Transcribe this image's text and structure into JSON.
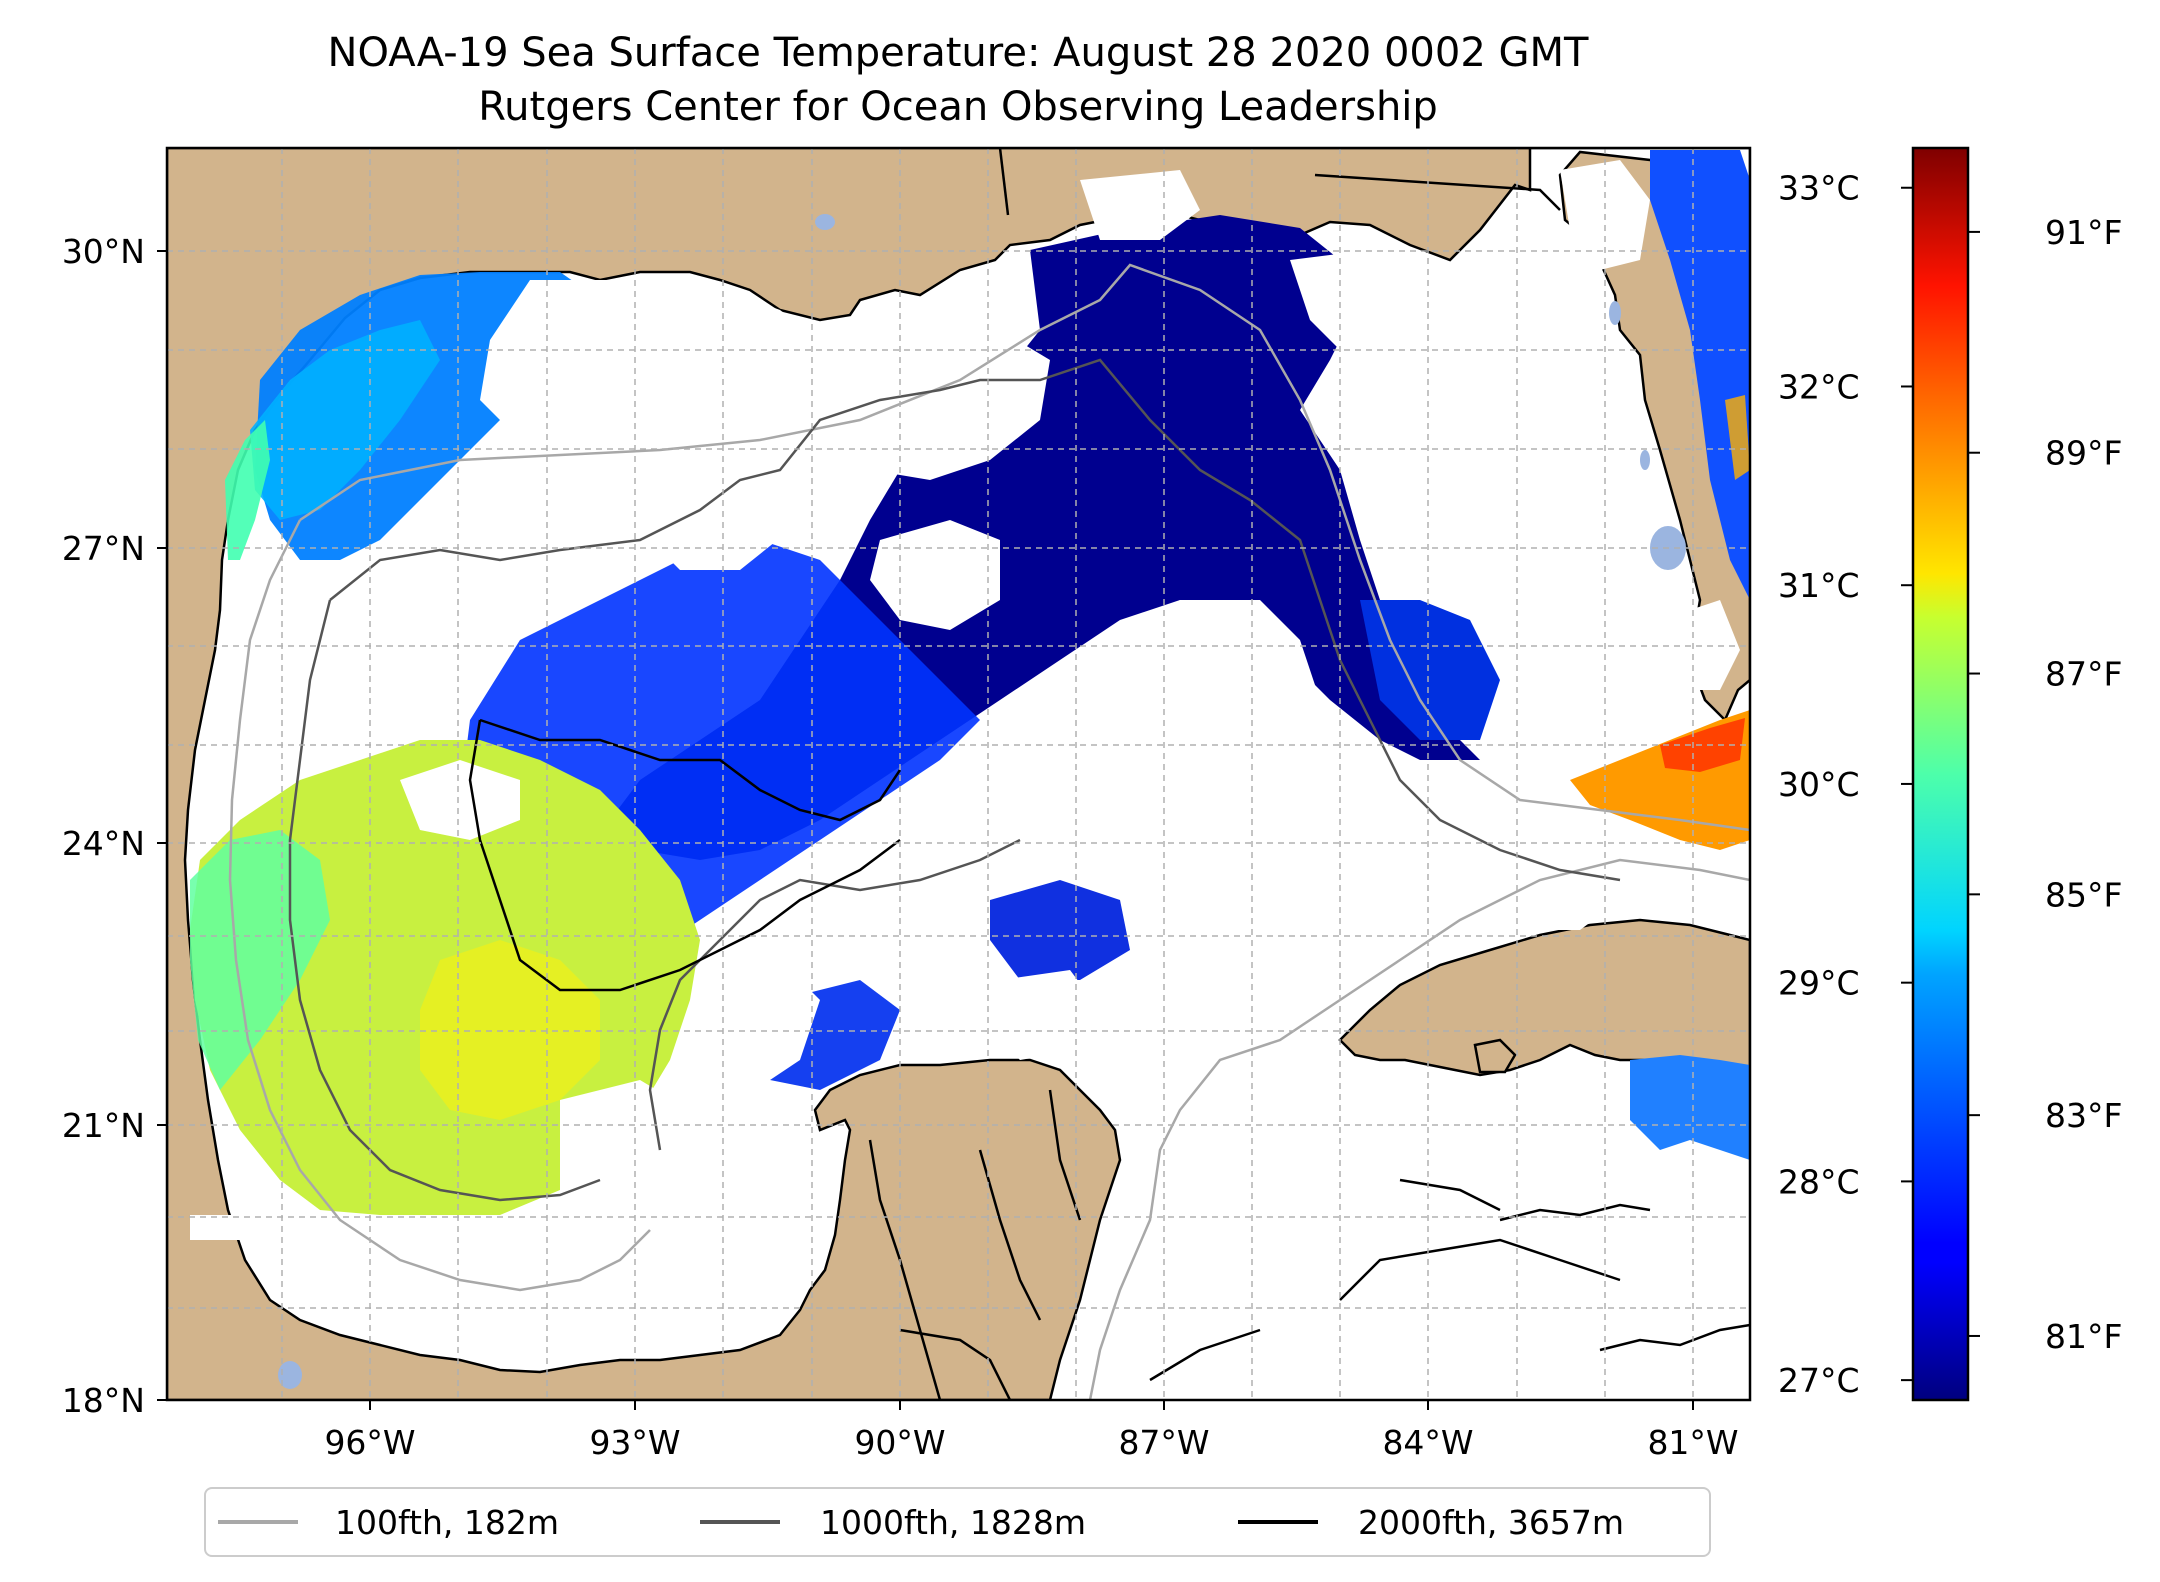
{
  "title": {
    "line1": "NOAA-19 Sea Surface Temperature: August 28 2020 0002 GMT",
    "line2": "Rutgers Center for Ocean Observing Leadership"
  },
  "map": {
    "lon_range": [
      -98,
      -80.3
    ],
    "lat_range": [
      18,
      31
    ],
    "lon_ticks": [
      {
        "value": -96,
        "label": "96°W"
      },
      {
        "value": -93,
        "label": "93°W"
      },
      {
        "value": -90,
        "label": "90°W"
      },
      {
        "value": -87,
        "label": "87°W"
      },
      {
        "value": -84,
        "label": "84°W"
      },
      {
        "value": -81,
        "label": "81°W"
      }
    ],
    "lat_ticks": [
      {
        "value": 30,
        "label": "30°N"
      },
      {
        "value": 27,
        "label": "27°N"
      },
      {
        "value": 24,
        "label": "24°N"
      },
      {
        "value": 21,
        "label": "21°N"
      },
      {
        "value": 18,
        "label": "18°N"
      }
    ],
    "gridlines": true,
    "colors": {
      "land": "#d2b48c",
      "no_data": "#ffffff",
      "lakes": "#9bb5e0",
      "coastline": "#000000"
    }
  },
  "colorbar": {
    "colormap": "jet",
    "celsius_range": [
      26.9,
      33.2
    ],
    "celsius_ticks": [
      {
        "value": 27,
        "label": "27°C"
      },
      {
        "value": 28,
        "label": "28°C"
      },
      {
        "value": 29,
        "label": "29°C"
      },
      {
        "value": 30,
        "label": "30°C"
      },
      {
        "value": 31,
        "label": "31°C"
      },
      {
        "value": 32,
        "label": "32°C"
      },
      {
        "value": 33,
        "label": "33°C"
      }
    ],
    "fahrenheit_ticks": [
      {
        "value": 81,
        "label": "81°F"
      },
      {
        "value": 83,
        "label": "83°F"
      },
      {
        "value": 85,
        "label": "85°F"
      },
      {
        "value": 87,
        "label": "87°F"
      },
      {
        "value": 89,
        "label": "89°F"
      },
      {
        "value": 91,
        "label": "91°F"
      }
    ]
  },
  "legend": {
    "items": [
      {
        "label": "100fth, 182m",
        "color": "#a8a8a8"
      },
      {
        "label": "1000fth, 1828m",
        "color": "#555555"
      },
      {
        "label": "2000fth, 3657m",
        "color": "#000000"
      }
    ]
  }
}
